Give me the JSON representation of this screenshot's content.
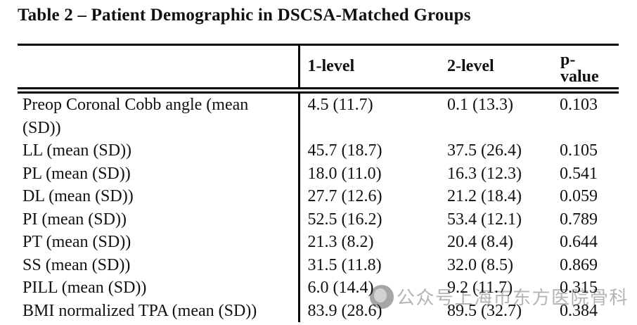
{
  "title": "Table 2 – Patient Demographic in DSCSA-Matched Groups",
  "table": {
    "columns": [
      "",
      "1-level",
      "2-level",
      "p-value"
    ],
    "rows": [
      {
        "label": "Preop Coronal Cobb angle (mean (SD))",
        "level1": "4.5 (11.7)",
        "level2": "0.1 (13.3)",
        "p": "0.103"
      },
      {
        "label": "LL (mean (SD))",
        "level1": "45.7 (18.7)",
        "level2": "37.5 (26.4)",
        "p": "0.105"
      },
      {
        "label": "PL (mean (SD))",
        "level1": "18.0 (11.0)",
        "level2": "16.3 (12.3)",
        "p": "0.541"
      },
      {
        "label": "DL (mean (SD))",
        "level1": "27.7 (12.6)",
        "level2": "21.2 (18.4)",
        "p": "0.059"
      },
      {
        "label": "PI (mean (SD))",
        "level1": "52.5 (16.2)",
        "level2": "53.4 (12.1)",
        "p": "0.789"
      },
      {
        "label": "PT (mean (SD))",
        "level1": "21.3 (8.2)",
        "level2": "20.4 (8.4)",
        "p": "0.644"
      },
      {
        "label": "SS (mean (SD))",
        "level1": "31.5 (11.8)",
        "level2": "32.0 (8.5)",
        "p": "0.869"
      },
      {
        "label": "PILL (mean (SD))",
        "level1": "6.0 (14.4)",
        "level2": "9.2 (11.7)",
        "p": "0.315"
      },
      {
        "label": "BMI normalized TPA (mean (SD))",
        "level1": "83.9 (28.6)",
        "level2": "89.5 (32.7)",
        "p": "0.384"
      }
    ]
  },
  "watermark": {
    "icon": "wechat-official-account-logo",
    "text": "公众号上海市东方医院骨科",
    "color": "#b4b4b4"
  }
}
